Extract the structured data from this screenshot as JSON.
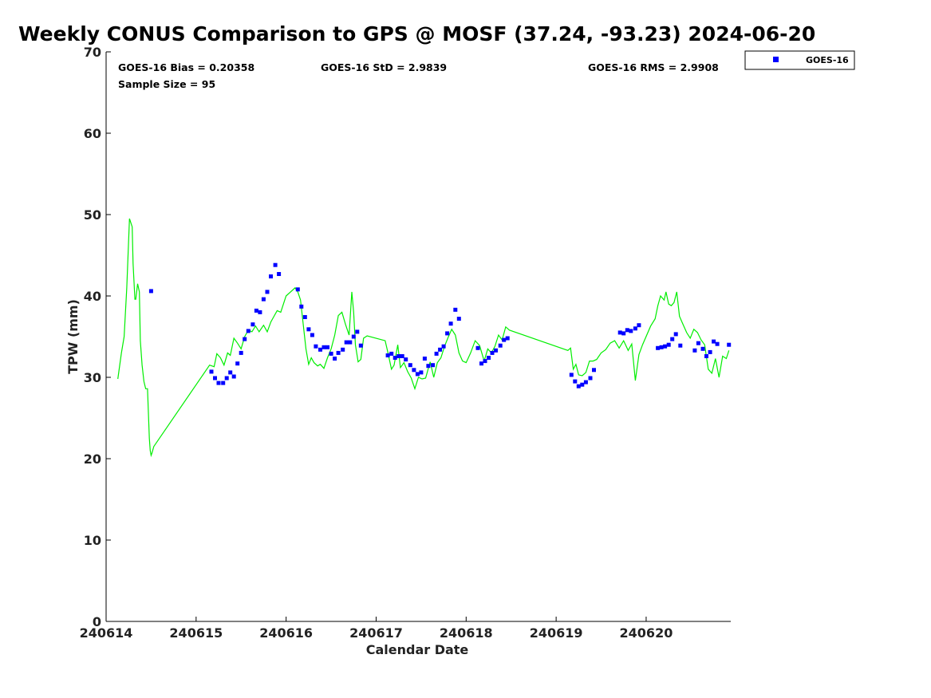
{
  "chart_data": {
    "type": "scatter",
    "title": "Weekly CONUS Comparison to GPS @ MOSF (37.24, -93.23) 2024-06-20",
    "xlabel": "Calendar Date",
    "ylabel": "TPW (mm)",
    "xlim": [
      240614,
      240620.94
    ],
    "ylim": [
      0,
      70
    ],
    "xticks": [
      240614,
      240615,
      240616,
      240617,
      240618,
      240619,
      240620
    ],
    "yticks": [
      0,
      10,
      20,
      30,
      40,
      50,
      60,
      70
    ],
    "grid": false,
    "legend_position": "top-right",
    "annotations": {
      "bias": "GOES-16 Bias = 0.20358",
      "std": "GOES-16 StD = 2.9839",
      "rms": "GOES-16 RMS = 2.9908",
      "sample_size": "Sample Size = 95"
    },
    "series": [
      {
        "name": "GOES-16",
        "kind": "scatter",
        "marker": "square",
        "color": "#0000ff",
        "x": [
          240614.5,
          240615.17,
          240615.21,
          240615.25,
          240615.3,
          240615.34,
          240615.38,
          240615.42,
          240615.46,
          240615.5,
          240615.54,
          240615.58,
          240615.63,
          240615.67,
          240615.71,
          240615.75,
          240615.79,
          240615.83,
          240615.88,
          240615.92,
          240616.13,
          240616.17,
          240616.21,
          240616.25,
          240616.29,
          240616.33,
          240616.38,
          240616.42,
          240616.46,
          240616.5,
          240616.54,
          240616.58,
          240616.63,
          240616.67,
          240616.71,
          240616.75,
          240616.79,
          240616.83,
          240617.13,
          240617.17,
          240617.21,
          240617.25,
          240617.29,
          240617.33,
          240617.38,
          240617.42,
          240617.46,
          240617.5,
          240617.54,
          240617.58,
          240617.63,
          240617.67,
          240617.71,
          240617.75,
          240617.79,
          240617.83,
          240617.88,
          240617.92,
          240618.13,
          240618.17,
          240618.21,
          240618.25,
          240618.29,
          240618.33,
          240618.38,
          240618.42,
          240618.46,
          240619.17,
          240619.21,
          240619.25,
          240619.29,
          240619.33,
          240619.38,
          240619.42,
          240619.71,
          240619.75,
          240619.79,
          240619.83,
          240619.88,
          240619.92,
          240620.13,
          240620.17,
          240620.21,
          240620.25,
          240620.29,
          240620.33,
          240620.38,
          240620.54,
          240620.58,
          240620.63,
          240620.67,
          240620.71,
          240620.75,
          240620.79,
          240620.92
        ],
        "y": [
          40.6,
          30.7,
          29.9,
          29.3,
          29.3,
          29.9,
          30.6,
          30.1,
          31.7,
          33.0,
          34.7,
          35.7,
          36.5,
          38.2,
          38.0,
          39.6,
          40.5,
          42.4,
          43.8,
          42.7,
          40.8,
          38.7,
          37.4,
          35.9,
          35.2,
          33.8,
          33.4,
          33.7,
          33.7,
          32.9,
          32.3,
          33.0,
          33.4,
          34.3,
          34.3,
          35.0,
          35.6,
          33.9,
          32.7,
          32.9,
          32.4,
          32.6,
          32.6,
          32.2,
          31.5,
          30.9,
          30.4,
          30.6,
          32.3,
          31.4,
          31.5,
          32.9,
          33.4,
          33.8,
          35.4,
          36.6,
          38.3,
          37.2,
          33.6,
          31.7,
          32.0,
          32.4,
          33.0,
          33.3,
          33.9,
          34.6,
          34.8,
          30.3,
          29.5,
          28.9,
          29.1,
          29.4,
          29.9,
          30.9,
          35.5,
          35.4,
          35.8,
          35.7,
          36.0,
          36.4,
          33.6,
          33.7,
          33.8,
          34.0,
          34.7,
          35.3,
          33.9,
          33.3,
          34.2,
          33.5,
          32.6,
          33.1,
          34.4,
          34.1,
          34.0
        ]
      },
      {
        "kind": "line",
        "color": "#00ee00",
        "x": [
          240614.13,
          240614.17,
          240614.2,
          240614.23,
          240614.26,
          240614.29,
          240614.3,
          240614.32,
          240614.33,
          240614.35,
          240614.37,
          240614.38,
          240614.4,
          240614.42,
          240614.44,
          240614.46,
          240614.48,
          240614.49,
          240614.5,
          240614.51,
          240614.53,
          240615.15,
          240615.2,
          240615.23,
          240615.27,
          240615.31,
          240615.35,
          240615.38,
          240615.42,
          240615.46,
          240615.5,
          240615.54,
          240615.58,
          240615.62,
          240615.66,
          240615.7,
          240615.75,
          240615.79,
          240615.83,
          240615.87,
          240615.9,
          240615.94,
          240616.0,
          240616.1,
          240616.13,
          240616.16,
          240616.19,
          240616.22,
          240616.25,
          240616.28,
          240616.31,
          240616.35,
          240616.38,
          240616.42,
          240616.46,
          240616.5,
          240616.54,
          240616.58,
          240616.62,
          240616.66,
          240616.7,
          240616.73,
          240616.75,
          240616.77,
          240616.8,
          240616.83,
          240616.86,
          240616.9,
          240617.1,
          240617.13,
          240617.17,
          240617.2,
          240617.24,
          240617.27,
          240617.31,
          240617.35,
          240617.39,
          240617.43,
          240617.47,
          240617.51,
          240617.55,
          240617.6,
          240617.64,
          240617.68,
          240617.72,
          240617.76,
          240617.8,
          240617.84,
          240617.88,
          240617.92,
          240617.96,
          240618.0,
          240618.05,
          240618.1,
          240618.15,
          240618.2,
          240618.24,
          240618.28,
          240618.32,
          240618.36,
          240618.4,
          240618.44,
          240618.48,
          240619.13,
          240619.16,
          240619.19,
          240619.22,
          240619.25,
          240619.29,
          240619.33,
          240619.37,
          240619.41,
          240619.45,
          240619.5,
          240619.55,
          240619.6,
          240619.65,
          240619.7,
          240619.75,
          240619.8,
          240619.84,
          240619.88,
          240619.92,
          240619.96,
          240620.05,
          240620.1,
          240620.13,
          240620.16,
          240620.2,
          240620.22,
          240620.25,
          240620.28,
          240620.31,
          240620.34,
          240620.37,
          240620.41,
          240620.45,
          240620.49,
          240620.53,
          240620.57,
          240620.61,
          240620.65,
          240620.69,
          240620.73,
          240620.77,
          240620.81,
          240620.85,
          240620.89,
          240620.92
        ],
        "y": [
          29.8,
          33.0,
          35.0,
          41.0,
          49.5,
          48.5,
          44.0,
          39.6,
          39.6,
          41.5,
          40.5,
          34.5,
          31.5,
          29.5,
          28.6,
          28.6,
          22.5,
          21.0,
          20.4,
          20.7,
          21.5,
          31.5,
          31.3,
          32.9,
          32.4,
          31.5,
          33.0,
          32.7,
          34.8,
          34.2,
          33.5,
          35.0,
          35.8,
          35.6,
          36.3,
          35.6,
          36.4,
          35.6,
          36.8,
          37.6,
          38.2,
          38.0,
          40.0,
          41.0,
          40.5,
          39.5,
          36.5,
          33.5,
          31.6,
          32.4,
          31.8,
          31.4,
          31.6,
          31.1,
          32.4,
          33.5,
          35.2,
          37.6,
          38.0,
          36.5,
          35.2,
          40.5,
          38.0,
          34.0,
          31.9,
          32.2,
          34.8,
          35.1,
          34.5,
          33.1,
          31.0,
          31.5,
          34.0,
          31.2,
          31.8,
          30.7,
          29.9,
          28.6,
          30.0,
          29.8,
          29.9,
          31.9,
          30.0,
          31.8,
          32.4,
          33.8,
          34.9,
          35.9,
          35.2,
          33.0,
          32.0,
          31.8,
          33.0,
          34.5,
          33.9,
          32.0,
          33.5,
          33.0,
          33.8,
          35.2,
          34.6,
          36.2,
          35.8,
          33.3,
          33.6,
          31.0,
          31.6,
          30.3,
          30.2,
          30.6,
          32.0,
          32.0,
          32.2,
          33.0,
          33.4,
          34.2,
          34.5,
          33.6,
          34.5,
          33.3,
          34.1,
          29.6,
          32.8,
          34.0,
          36.3,
          37.2,
          38.8,
          40.0,
          39.5,
          40.5,
          39.0,
          38.8,
          39.2,
          40.5,
          37.5,
          36.5,
          35.5,
          34.8,
          35.9,
          35.5,
          34.6,
          34.0,
          31.0,
          30.5,
          32.3,
          30.0,
          32.6,
          32.3,
          33.3
        ]
      }
    ]
  }
}
